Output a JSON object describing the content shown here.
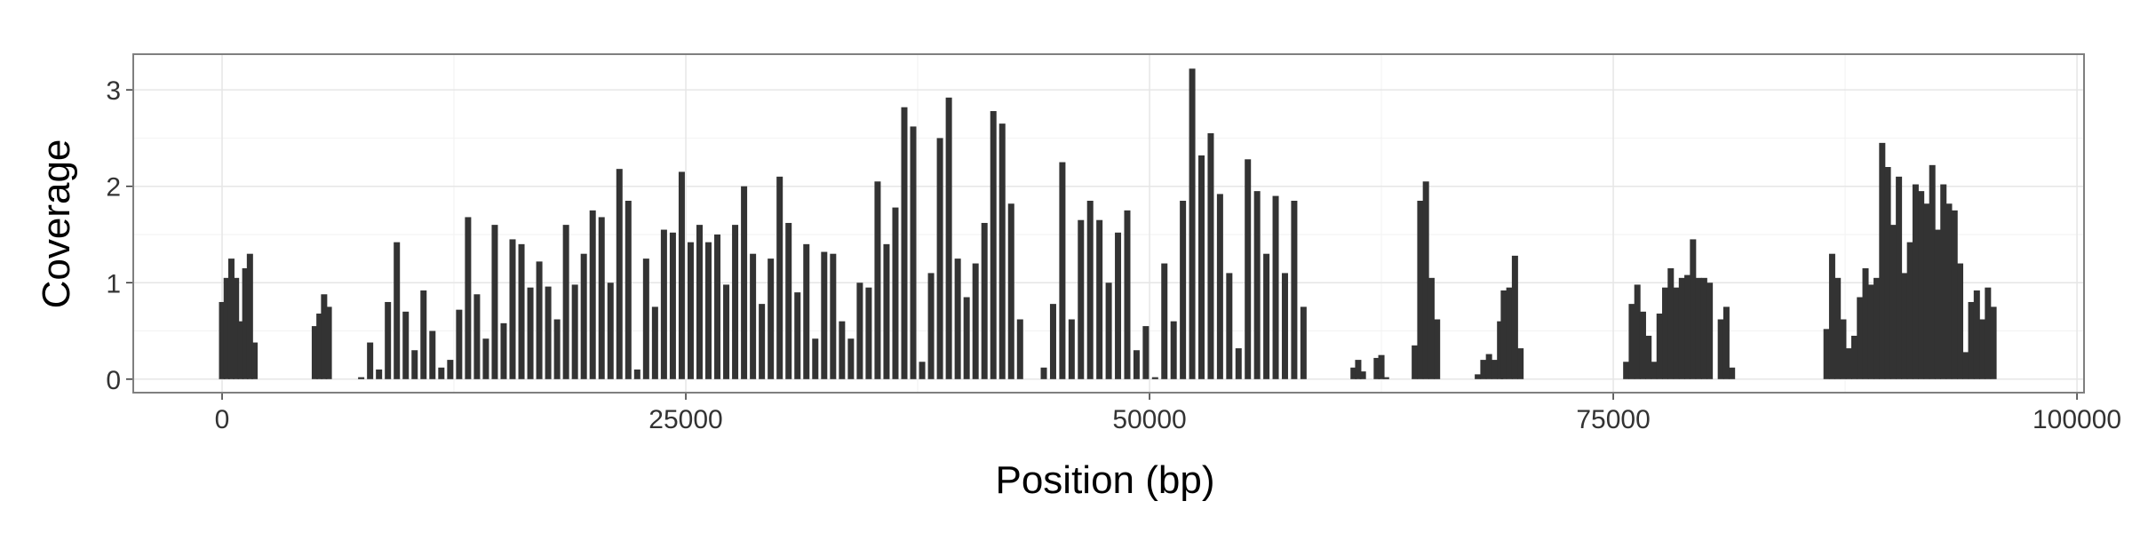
{
  "chart_data": {
    "type": "bar",
    "x_label": "Position (bp)",
    "y_label": "Coverage",
    "color": "#333333",
    "grid": true,
    "xlim": [
      -4790,
      100380
    ],
    "ylim": [
      -0.14,
      3.37
    ],
    "xticks": [
      0,
      25000,
      50000,
      75000,
      100000
    ],
    "yticks": [
      0,
      1,
      2,
      3
    ],
    "x": [
      0,
      250,
      500,
      750,
      1000,
      1250,
      1500,
      1750,
      5000,
      5250,
      5500,
      5750,
      7500,
      7980,
      8460,
      8940,
      9420,
      9900,
      10380,
      10860,
      11340,
      11820,
      12300,
      12780,
      13260,
      13740,
      14220,
      14700,
      15180,
      15660,
      16140,
      16620,
      17100,
      17580,
      18060,
      18540,
      19020,
      19500,
      19980,
      20460,
      20940,
      21420,
      21900,
      22380,
      22860,
      23340,
      23820,
      24300,
      24780,
      25260,
      25740,
      26220,
      26700,
      27180,
      27660,
      28140,
      28620,
      29100,
      29580,
      30060,
      30540,
      31020,
      31500,
      31980,
      32460,
      32940,
      33420,
      33900,
      34380,
      34860,
      35340,
      35820,
      36300,
      36780,
      37260,
      37740,
      38220,
      38700,
      39180,
      39660,
      40140,
      40620,
      41100,
      41580,
      42060,
      42540,
      43020,
      44300,
      44800,
      45300,
      45800,
      46300,
      46800,
      47300,
      47800,
      48300,
      48800,
      49300,
      49800,
      50300,
      50800,
      51300,
      51800,
      52300,
      52800,
      53300,
      53800,
      54300,
      54800,
      55300,
      55800,
      56300,
      56800,
      57300,
      57800,
      58300,
      61000,
      61250,
      61500,
      62250,
      62500,
      62750,
      64300,
      64600,
      64900,
      65200,
      65500,
      67700,
      68000,
      68300,
      68600,
      68900,
      69100,
      69400,
      69700,
      70000,
      75700,
      76000,
      76300,
      76600,
      76900,
      77200,
      77500,
      77800,
      78100,
      78400,
      78700,
      79000,
      79300,
      79600,
      79900,
      80200,
      80800,
      81100,
      81400,
      86500,
      86800,
      87100,
      87400,
      87700,
      88000,
      88300,
      88600,
      88900,
      89200,
      89500,
      89800,
      90100,
      90400,
      90700,
      91000,
      91300,
      91600,
      91900,
      92200,
      92500,
      92800,
      93100,
      93400,
      93700,
      94000,
      94300,
      94600,
      94900,
      95200,
      95500
    ],
    "values": [
      0.8,
      1.05,
      1.25,
      1.05,
      0.6,
      1.15,
      1.3,
      0.38,
      0.55,
      0.68,
      0.88,
      0.75,
      0.02,
      0.38,
      0.1,
      0.8,
      1.42,
      0.7,
      0.3,
      0.92,
      0.5,
      0.12,
      0.2,
      0.72,
      1.68,
      0.88,
      0.42,
      1.6,
      0.58,
      1.45,
      1.4,
      0.95,
      1.22,
      0.96,
      0.62,
      1.6,
      0.98,
      1.3,
      1.75,
      1.68,
      1.0,
      2.18,
      1.85,
      0.1,
      1.25,
      0.75,
      1.55,
      1.52,
      2.15,
      1.42,
      1.6,
      1.42,
      1.5,
      0.98,
      1.6,
      2.0,
      1.3,
      0.78,
      1.25,
      2.1,
      1.62,
      0.9,
      1.4,
      0.42,
      1.32,
      1.3,
      0.6,
      0.42,
      1.0,
      0.95,
      2.05,
      1.4,
      1.78,
      2.82,
      2.62,
      0.18,
      1.1,
      2.5,
      2.92,
      1.25,
      0.85,
      1.2,
      1.62,
      2.78,
      2.65,
      1.82,
      0.62,
      0.12,
      0.78,
      2.25,
      0.62,
      1.65,
      1.85,
      1.65,
      1.0,
      1.52,
      1.75,
      0.3,
      0.55,
      0.02,
      1.2,
      0.6,
      1.85,
      3.22,
      2.32,
      2.55,
      1.92,
      1.1,
      0.32,
      2.28,
      1.95,
      1.3,
      1.9,
      1.1,
      1.85,
      0.75,
      0.12,
      0.2,
      0.08,
      0.22,
      0.25,
      0.02,
      0.35,
      1.85,
      2.05,
      1.05,
      0.62,
      0.05,
      0.2,
      0.26,
      0.2,
      0.6,
      0.92,
      0.95,
      1.28,
      0.32,
      0.18,
      0.78,
      0.98,
      0.7,
      0.45,
      0.18,
      0.68,
      0.95,
      1.15,
      0.95,
      1.05,
      1.08,
      1.45,
      1.05,
      1.05,
      1.0,
      0.62,
      0.75,
      0.12,
      0.52,
      1.3,
      1.05,
      0.62,
      0.32,
      0.45,
      0.85,
      1.15,
      0.98,
      1.05,
      2.45,
      2.2,
      1.6,
      2.1,
      1.1,
      1.42,
      2.02,
      1.95,
      1.82,
      2.22,
      1.55,
      2.02,
      1.82,
      1.75,
      1.2,
      0.28,
      0.8,
      0.92,
      0.62,
      0.95,
      0.75
    ]
  }
}
